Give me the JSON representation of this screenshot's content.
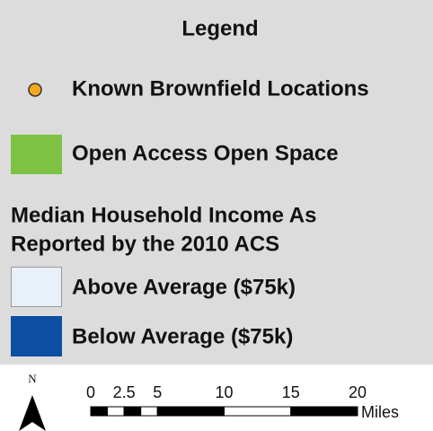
{
  "legend": {
    "title": "Legend",
    "items": [
      {
        "label": "Known Brownfield Locations",
        "color": "#f4a81d",
        "shape": "circle"
      },
      {
        "label": "Open Access Open Space",
        "color": "#7dc243",
        "shape": "square"
      }
    ],
    "income_heading": [
      "Median Household Income As",
      "Reported by the 2010 ACS"
    ],
    "income_items": [
      {
        "label": "Above Average ($75k)",
        "color": "#e8f0fa"
      },
      {
        "label": "Below Average ($75k)",
        "color": "#0b4ea2"
      }
    ]
  },
  "north_arrow": {
    "label": "N"
  },
  "scale_bar": {
    "ticks": [
      0,
      2.5,
      5,
      10,
      15,
      20
    ],
    "unit": "Miles"
  }
}
